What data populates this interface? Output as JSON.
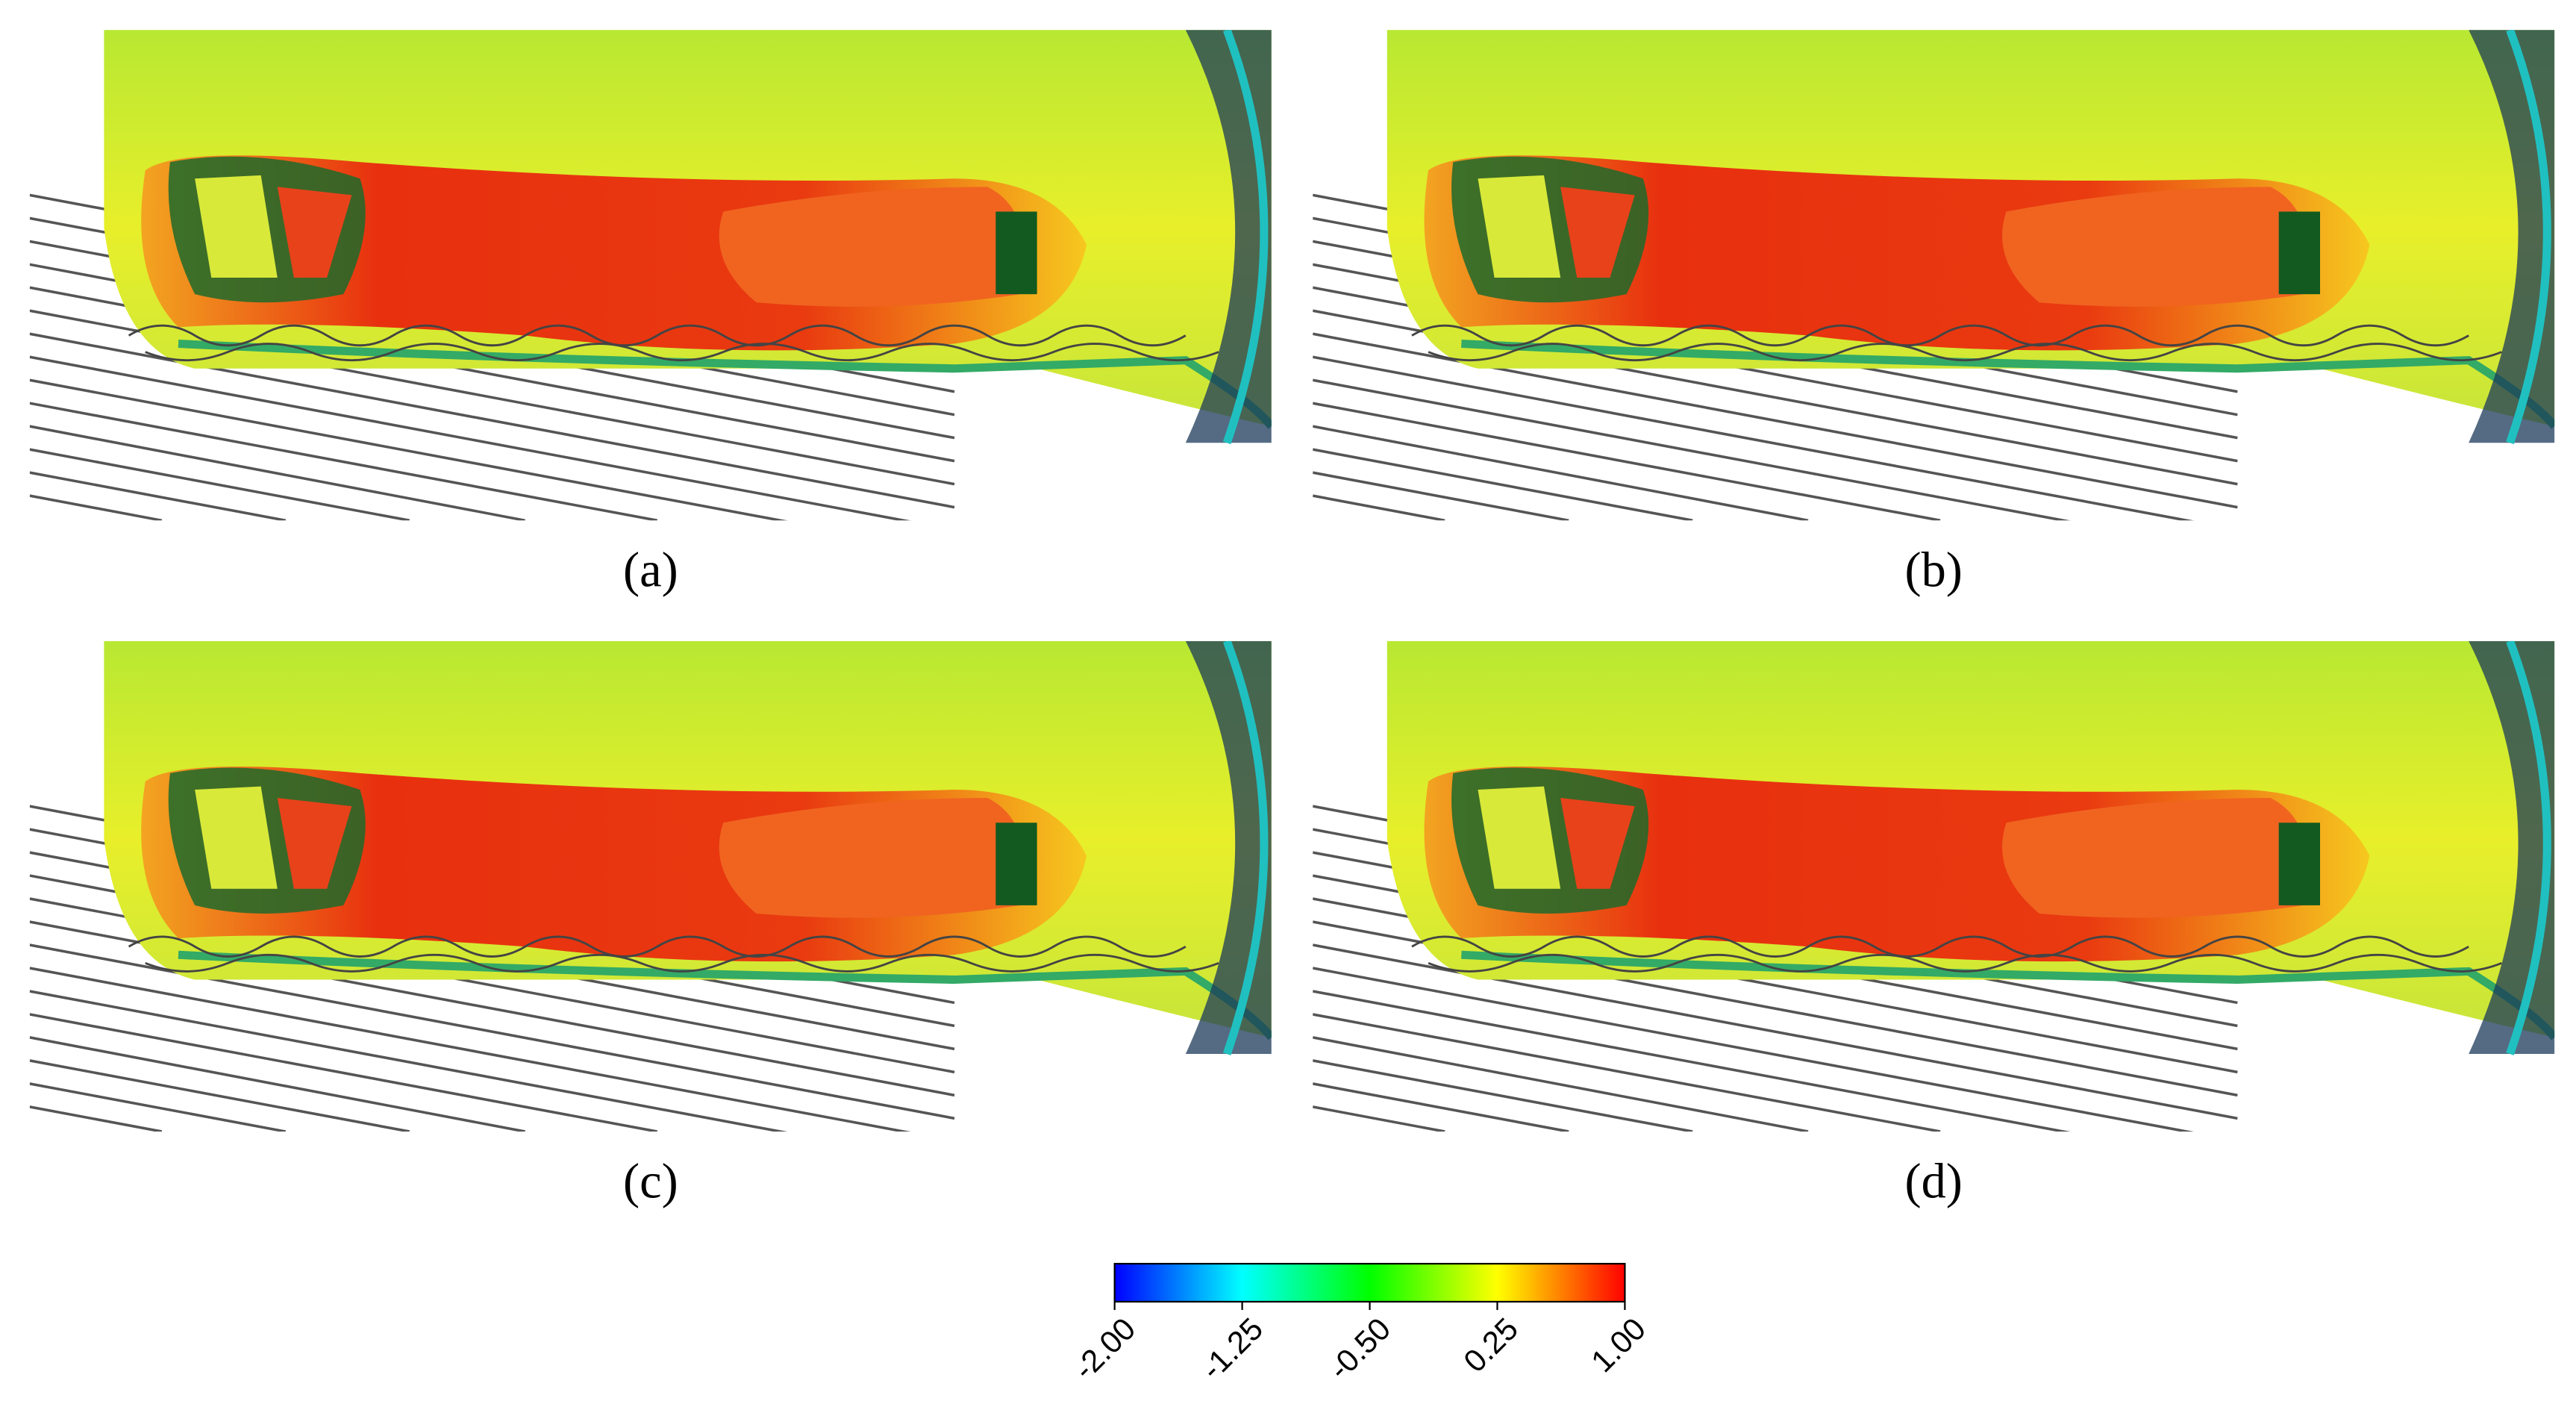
{
  "panels": [
    {
      "label": "(a)"
    },
    {
      "label": "(b)"
    },
    {
      "label": "(c)"
    },
    {
      "label": "(d)"
    }
  ],
  "chart_data": {
    "type": "colorbar",
    "clim": [
      -2,
      1
    ],
    "ticks": [
      {
        "value": -2,
        "label": "-2.00"
      },
      {
        "value": -1.25,
        "label": "-1.25"
      },
      {
        "value": -0.5,
        "label": "-0.50"
      },
      0.25,
      {
        "value": 1,
        "label": "1.00"
      }
    ],
    "colormap": [
      "#0000ff",
      "#00ffff",
      "#00ff00",
      "#ffff00",
      "#ff0000"
    ]
  }
}
